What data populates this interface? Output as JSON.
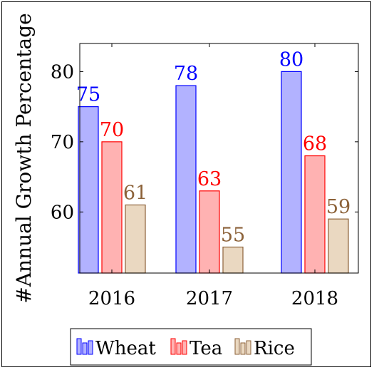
{
  "chart_data": {
    "type": "bar",
    "categories": [
      "2016",
      "2017",
      "2018"
    ],
    "series": [
      {
        "name": "Wheat",
        "values": [
          75,
          78,
          80
        ],
        "fill": "#b2b2ff",
        "stroke": "#0000ff",
        "label_color": "#0000ff"
      },
      {
        "name": "Tea",
        "values": [
          70,
          63,
          68
        ],
        "fill": "#ffb2b2",
        "stroke": "#ff0000",
        "label_color": "#ff0000"
      },
      {
        "name": "Rice",
        "values": [
          61,
          55,
          59
        ],
        "fill": "#ead8c1",
        "stroke": "#8c6239",
        "label_color": "#8c6239"
      }
    ],
    "title": "",
    "xlabel": "",
    "ylabel": "#Annual Growth Percentage",
    "ylim": [
      51.3,
      84
    ],
    "yticks": [
      60,
      70,
      80
    ],
    "grid": false,
    "legend_position": "bottom"
  }
}
